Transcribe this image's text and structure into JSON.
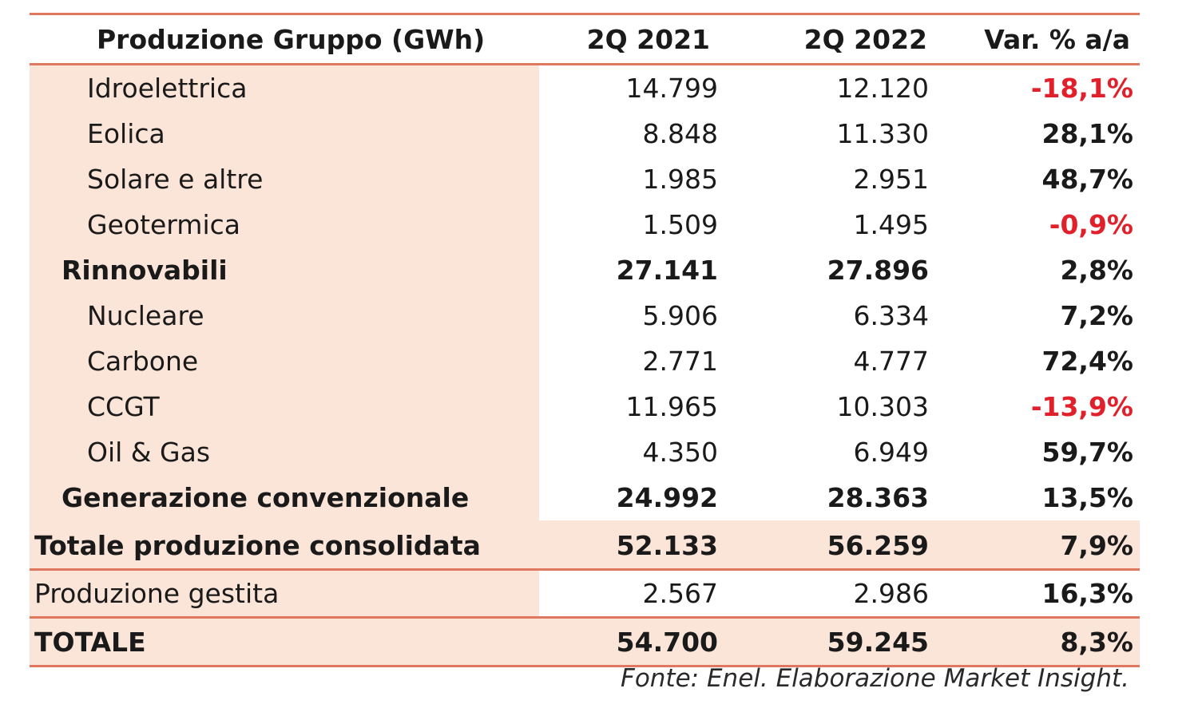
{
  "header": {
    "label": "Produzione Gruppo (GWh)",
    "col_a": "2Q 2021",
    "col_b": "2Q 2022",
    "col_c": "Var. % a/a"
  },
  "rows": [
    {
      "label": "Idroelettrica",
      "a": "14.799",
      "b": "12.120",
      "c": "-18,1%"
    },
    {
      "label": "Eolica",
      "a": "8.848",
      "b": "11.330",
      "c": "28,1%"
    },
    {
      "label": "Solare e altre",
      "a": "1.985",
      "b": "2.951",
      "c": "48,7%"
    },
    {
      "label": "Geotermica",
      "a": "1.509",
      "b": "1.495",
      "c": "-0,9%"
    },
    {
      "label": "Rinnovabili",
      "a": "27.141",
      "b": "27.896",
      "c": "2,8%"
    },
    {
      "label": "Nucleare",
      "a": "5.906",
      "b": "6.334",
      "c": "7,2%"
    },
    {
      "label": "Carbone",
      "a": "2.771",
      "b": "4.777",
      "c": "72,4%"
    },
    {
      "label": "CCGT",
      "a": "11.965",
      "b": "10.303",
      "c": "-13,9%"
    },
    {
      "label": "Oil & Gas",
      "a": "4.350",
      "b": "6.949",
      "c": "59,7%"
    },
    {
      "label": "Generazione convenzionale",
      "a": "24.992",
      "b": "28.363",
      "c": "13,5%"
    },
    {
      "label": "Totale produzione consolidata",
      "a": "52.133",
      "b": "56.259",
      "c": "7,9%"
    },
    {
      "label": "Produzione gestita",
      "a": "2.567",
      "b": "2.986",
      "c": "16,3%"
    },
    {
      "label": "TOTALE",
      "a": "54.700",
      "b": "59.245",
      "c": "8,3%"
    }
  ],
  "source": "Fonte: Enel. Elaborazione Market Insight.",
  "colors": {
    "accent_line": "#e07860",
    "label_fill": "#fbe4d8",
    "negative": "#e0202a"
  }
}
